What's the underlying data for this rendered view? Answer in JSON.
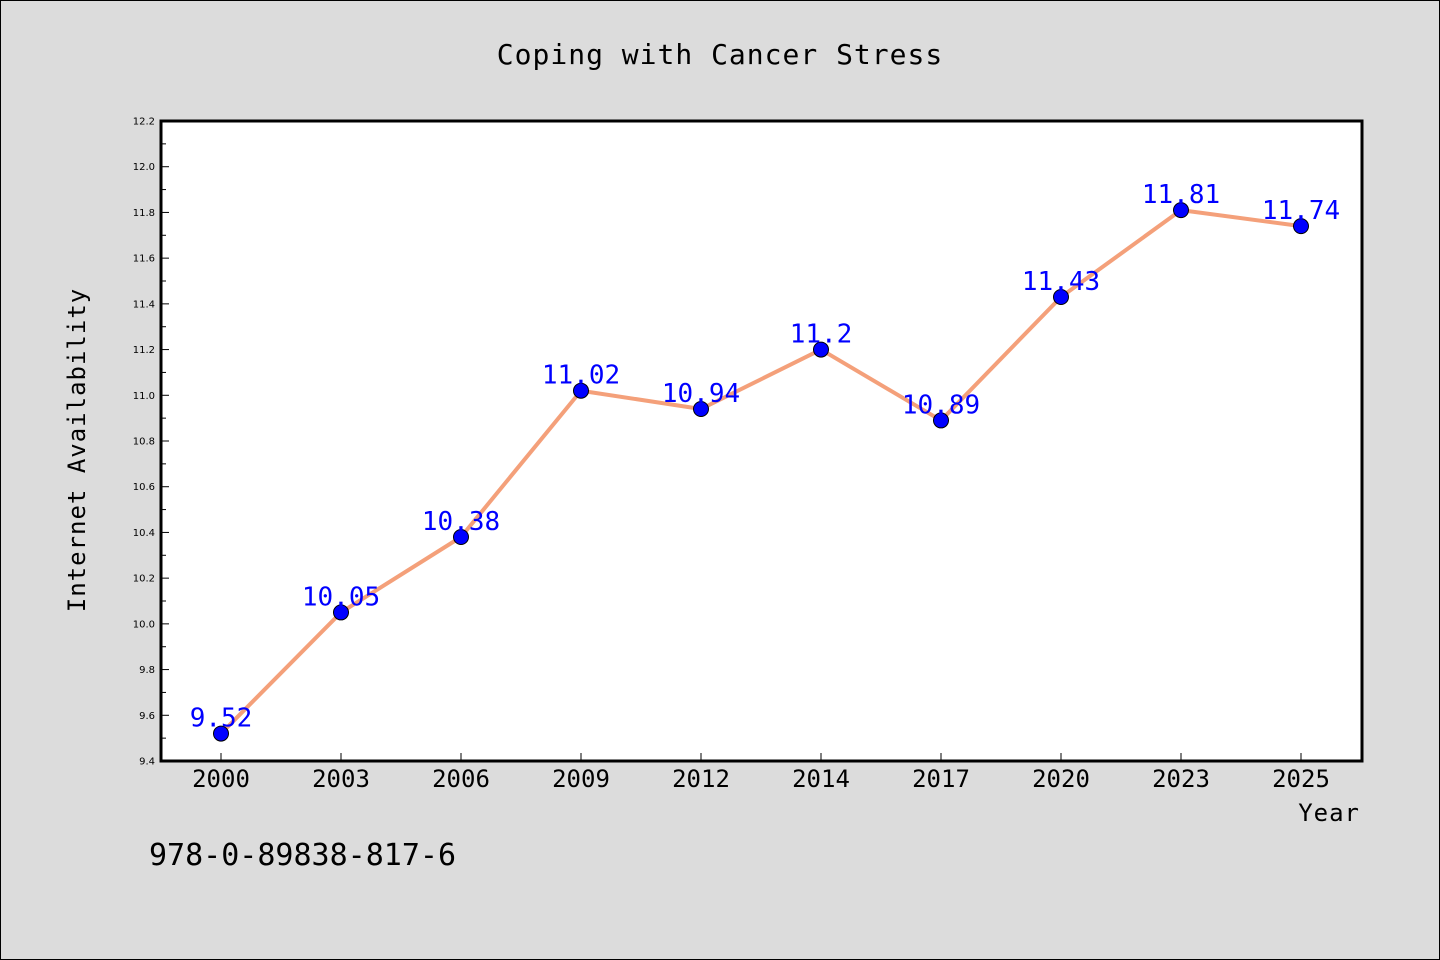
{
  "chart_data": {
    "type": "line",
    "title": "Coping with Cancer Stress",
    "xlabel": "Year",
    "ylabel": "Internet Availability",
    "categories": [
      "2000",
      "2003",
      "2006",
      "2009",
      "2012",
      "2014",
      "2017",
      "2020",
      "2023",
      "2025"
    ],
    "values": [
      9.52,
      10.05,
      10.38,
      11.02,
      10.94,
      11.2,
      10.89,
      11.43,
      11.81,
      11.74
    ],
    "data_labels": [
      "9.52",
      "10.05",
      "10.38",
      "11.02",
      "10.94",
      "11.2",
      "10.89",
      "11.43",
      "11.81",
      "11.74"
    ],
    "ylim": [
      9.4,
      12.2
    ],
    "yticks": [
      "9.4",
      "9.6",
      "9.8",
      "10.0",
      "10.2",
      "10.4",
      "10.6",
      "10.8",
      "11.0",
      "11.2",
      "11.4",
      "11.6",
      "11.8",
      "12.0",
      "12.2"
    ],
    "grid": false,
    "legend": "none",
    "colors": {
      "line": "#f4a07a",
      "marker": "#0000ff",
      "label": "#0000ff"
    }
  },
  "footer": {
    "isbn": "978-0-89838-817-6"
  }
}
